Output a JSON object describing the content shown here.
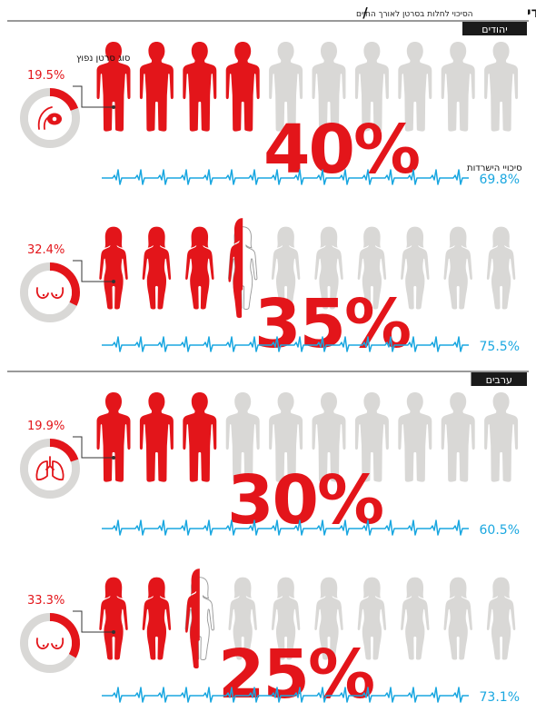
{
  "header": {
    "title": "מסוכן יותר להיות גבר יהודי",
    "separator": "/",
    "subtitle": "הסיכוי לחלות בסרטן לאורך החיים"
  },
  "chart_data": {
    "type": "pictogram",
    "title": "מסוכן יותר להיות גבר יהודי",
    "subtitle": "הסיכוי לחלות בסרטן לאורך החיים",
    "colors": {
      "risk": "#e3151a",
      "neutral": "#d9d8d6",
      "survival": "#1aa7e0",
      "dark_label": "#1a1a1a"
    },
    "sections": [
      {
        "label": "יהודים",
        "panels": [
          {
            "gender": "male",
            "risk_pct": 40,
            "risk_label": "40%",
            "common_cancer_pct": 19.5,
            "common_cancer_label": "19.5%",
            "common_cancer_caption": "סוג סרטן נפוץ",
            "cancer_icon": "prostate-icon",
            "survival_pct": 69.8,
            "survival_label": "69.8%",
            "survival_caption": "סיכויי הישרדות"
          },
          {
            "gender": "female",
            "risk_pct": 35,
            "risk_label": "35%",
            "common_cancer_pct": 32.4,
            "common_cancer_label": "32.4%",
            "cancer_icon": "breast-icon",
            "survival_pct": 75.5,
            "survival_label": "75.5%"
          }
        ]
      },
      {
        "label": "ערבים",
        "panels": [
          {
            "gender": "male",
            "risk_pct": 30,
            "risk_label": "30%",
            "common_cancer_pct": 19.9,
            "common_cancer_label": "19.9%",
            "cancer_icon": "lungs-icon",
            "survival_pct": 60.5,
            "survival_label": "60.5%"
          },
          {
            "gender": "female",
            "risk_pct": 25,
            "risk_label": "25%",
            "common_cancer_pct": 33.3,
            "common_cancer_label": "33.3%",
            "cancer_icon": "breast-icon",
            "survival_pct": 73.1,
            "survival_label": "73.1%"
          }
        ]
      }
    ]
  }
}
